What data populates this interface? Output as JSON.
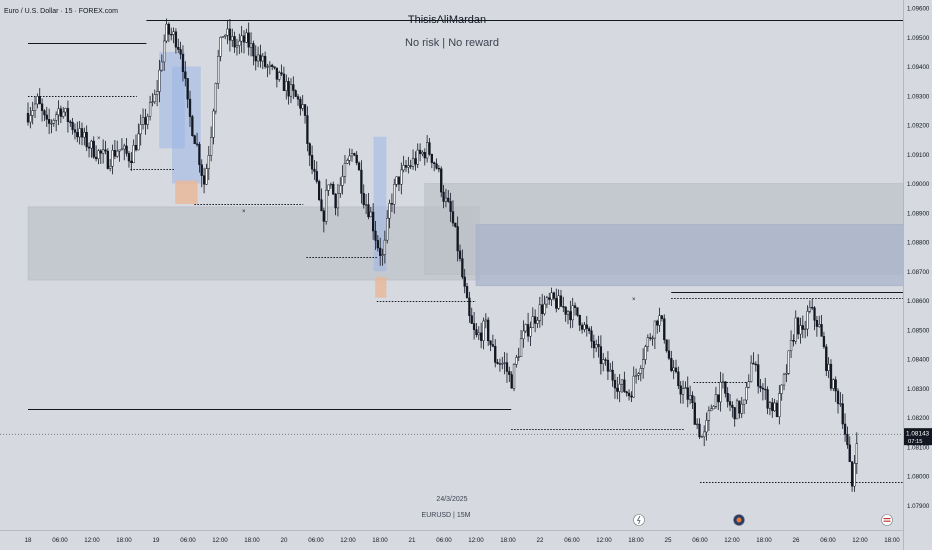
{
  "header": {
    "symbol_title": "Euro / U.S. Dollar · 15 · FOREX.com"
  },
  "watermark": {
    "author": "ThisisAliMardan",
    "subtitle": "No risk | No reward"
  },
  "footer_text": {
    "date": "24/3/2025",
    "symbol_tf": "EURUSD | 15M"
  },
  "price_badge": {
    "price": "1.08143",
    "countdown": "07:15"
  },
  "colors": {
    "background": "#d6d9e0",
    "candle": "#131722",
    "zone_gray": "#bcc0c8",
    "zone_blue": "#a9b3cb",
    "fvg_blue": "#9db7e6",
    "fvg_orange": "#e9b89a",
    "arrow": "#e07b39"
  },
  "chart_data": {
    "type": "candlestick",
    "title": "Euro / U.S. Dollar · 15 · FOREX.com",
    "y_axis": {
      "side": "right",
      "ticks": [
        "1.09600",
        "1.09500",
        "1.09400",
        "1.09300",
        "1.09200",
        "1.09100",
        "1.09000",
        "1.08900",
        "1.08800",
        "1.08700",
        "1.08600",
        "1.08500",
        "1.08400",
        "1.08300",
        "1.08200",
        "1.08100",
        "1.08000",
        "1.07900"
      ],
      "range": [
        1.0788,
        1.0962
      ]
    },
    "x_axis": {
      "labels": [
        "18",
        "06:00",
        "12:00",
        "18:00",
        "19",
        "06:00",
        "12:00",
        "18:00",
        "20",
        "06:00",
        "12:00",
        "18:00",
        "21",
        "06:00",
        "12:00",
        "18:00",
        "22",
        "06:00",
        "12:00",
        "18:00",
        "25",
        "06:00",
        "12:00",
        "18:00",
        "26",
        "06:00",
        "12:00",
        "18:00"
      ]
    },
    "price_path": [
      [
        0,
        1.0924
      ],
      [
        0.3,
        1.0928
      ],
      [
        0.6,
        1.0919
      ],
      [
        1.0,
        1.0926
      ],
      [
        1.5,
        1.0918
      ],
      [
        2.0,
        1.0912
      ],
      [
        2.5,
        1.0908
      ],
      [
        2.8,
        1.0912
      ],
      [
        3.2,
        1.0909
      ],
      [
        3.6,
        1.092
      ],
      [
        4.0,
        1.093
      ],
      [
        4.3,
        1.0952
      ],
      [
        4.6,
        1.095
      ],
      [
        4.8,
        1.0945
      ],
      [
        5.0,
        1.0925
      ],
      [
        5.3,
        1.0912
      ],
      [
        5.5,
        1.09
      ],
      [
        5.7,
        1.0915
      ],
      [
        5.9,
        1.094
      ],
      [
        6.1,
        1.0952
      ],
      [
        6.5,
        1.0947
      ],
      [
        6.8,
        1.0949
      ],
      [
        7.2,
        1.0943
      ],
      [
        7.6,
        1.0938
      ],
      [
        8.0,
        1.0934
      ],
      [
        8.3,
        1.093
      ],
      [
        8.6,
        1.0926
      ],
      [
        8.8,
        1.0908
      ],
      [
        9.0,
        1.09
      ],
      [
        9.2,
        1.0886
      ],
      [
        9.4,
        1.0902
      ],
      [
        9.6,
        1.0894
      ],
      [
        9.9,
        1.0904
      ],
      [
        10.2,
        1.0912
      ],
      [
        10.5,
        1.0895
      ],
      [
        10.7,
        1.089
      ],
      [
        10.9,
        1.088
      ],
      [
        11.1,
        1.0874
      ],
      [
        11.3,
        1.0892
      ],
      [
        11.5,
        1.09
      ],
      [
        11.8,
        1.0905
      ],
      [
        12.1,
        1.0908
      ],
      [
        12.5,
        1.0912
      ],
      [
        12.8,
        1.0905
      ],
      [
        13.0,
        1.0895
      ],
      [
        13.2,
        1.089
      ],
      [
        13.4,
        1.088
      ],
      [
        13.6,
        1.0866
      ],
      [
        13.8,
        1.0853
      ],
      [
        14.0,
        1.0847
      ],
      [
        14.3,
        1.0851
      ],
      [
        14.6,
        1.084
      ],
      [
        14.9,
        1.0838
      ],
      [
        15.1,
        1.0832
      ],
      [
        15.4,
        1.0846
      ],
      [
        15.7,
        1.0852
      ],
      [
        16.0,
        1.0857
      ],
      [
        16.4,
        1.086
      ],
      [
        16.8,
        1.0857
      ],
      [
        17.2,
        1.0855
      ],
      [
        17.6,
        1.0846
      ],
      [
        18.0,
        1.0838
      ],
      [
        18.4,
        1.0832
      ],
      [
        18.8,
        1.0828
      ],
      [
        19.1,
        1.0838
      ],
      [
        19.4,
        1.0847
      ],
      [
        19.7,
        1.0855
      ],
      [
        19.9,
        1.0848
      ],
      [
        20.1,
        1.0836
      ],
      [
        20.4,
        1.083
      ],
      [
        20.7,
        1.0826
      ],
      [
        20.9,
        1.0818
      ],
      [
        21.1,
        1.0812
      ],
      [
        21.4,
        1.0826
      ],
      [
        21.7,
        1.083
      ],
      [
        22.0,
        1.0822
      ],
      [
        22.4,
        1.0824
      ],
      [
        22.6,
        1.084
      ],
      [
        22.8,
        1.0834
      ],
      [
        23.1,
        1.0826
      ],
      [
        23.4,
        1.0822
      ],
      [
        23.7,
        1.0836
      ],
      [
        24.0,
        1.0853
      ],
      [
        24.2,
        1.0847
      ],
      [
        24.4,
        1.0857
      ],
      [
        24.7,
        1.0852
      ],
      [
        25.0,
        1.0836
      ],
      [
        25.2,
        1.0829
      ],
      [
        25.4,
        1.0825
      ],
      [
        25.6,
        1.081
      ],
      [
        25.75,
        1.0796
      ],
      [
        25.9,
        1.0814
      ]
    ],
    "zones": [
      {
        "kind": "supply",
        "from": 0,
        "to": 14.1,
        "high": 1.0892,
        "low": 1.0867
      },
      {
        "kind": "supply",
        "from": 12.4,
        "to": 33.4,
        "high": 1.09,
        "low": 1.0869
      },
      {
        "kind": "supply",
        "from": 14.0,
        "to": 33.2,
        "high": 1.0886,
        "low": 1.0865
      }
    ],
    "levels": [
      {
        "price": 1.0956,
        "from": 3.7,
        "to": 29.7,
        "style": "solid"
      },
      {
        "price": 1.0948,
        "from": 0,
        "to": 3.7,
        "style": "solid"
      },
      {
        "price": 1.093,
        "from": 0,
        "to": 3.4,
        "style": "dotted"
      },
      {
        "price": 1.0905,
        "from": 3.2,
        "to": 4.6,
        "style": "dotted"
      },
      {
        "price": 1.0893,
        "from": 5.2,
        "to": 8.6,
        "style": "dotted"
      },
      {
        "price": 1.0875,
        "from": 8.7,
        "to": 10.9,
        "style": "dotted"
      },
      {
        "price": 1.086,
        "from": 10.9,
        "to": 14.0,
        "style": "dotted"
      },
      {
        "price": 1.0823,
        "from": 0,
        "to": 15.1,
        "style": "solid"
      },
      {
        "price": 1.0816,
        "from": 15.1,
        "to": 20.5,
        "style": "dotted"
      },
      {
        "price": 1.0863,
        "from": 20.1,
        "to": 31.0,
        "style": "solid"
      },
      {
        "price": 1.0861,
        "from": 20.1,
        "to": 27.4,
        "style": "dotted"
      },
      {
        "price": 1.0798,
        "from": 21.0,
        "to": 27.4,
        "style": "dotted"
      },
      {
        "price": 1.0832,
        "from": 20.8,
        "to": 22.5,
        "style": "dotted"
      }
    ],
    "fvg_boxes": [
      {
        "from": 4.1,
        "to": 4.9,
        "high": 1.0945,
        "low": 1.0912,
        "color": "blue"
      },
      {
        "from": 4.5,
        "to": 5.4,
        "high": 1.094,
        "low": 1.09,
        "color": "blue"
      },
      {
        "from": 4.6,
        "to": 5.3,
        "high": 1.0901,
        "low": 1.0893,
        "color": "orange"
      },
      {
        "from": 10.8,
        "to": 11.2,
        "high": 1.0916,
        "low": 1.087,
        "color": "blue"
      },
      {
        "from": 10.85,
        "to": 11.2,
        "high": 1.0868,
        "low": 1.0861,
        "color": "orange"
      }
    ],
    "projection": {
      "shape": "arc",
      "direction": "down",
      "from": [
        29.0,
        1.0852
      ],
      "peak": [
        30.7,
        1.0869
      ],
      "to": [
        32.8,
        1.084
      ]
    },
    "last_price": 1.08143,
    "grid": false
  }
}
